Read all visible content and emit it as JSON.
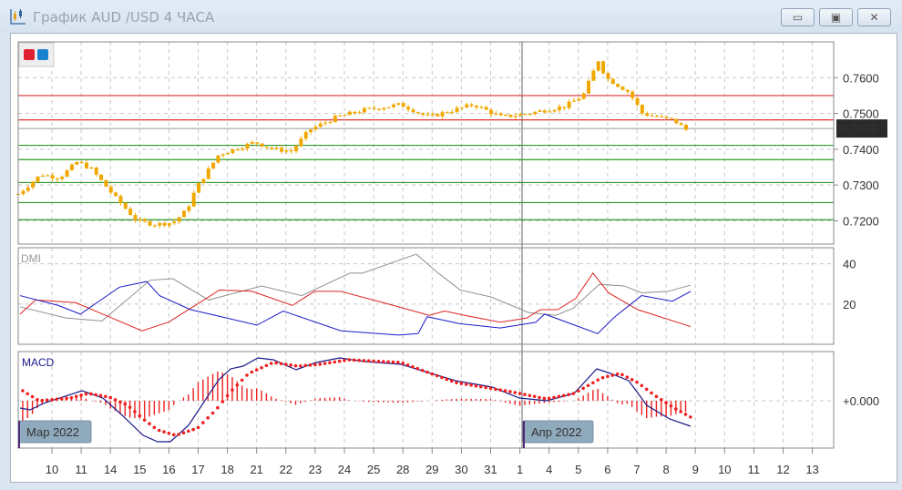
{
  "window": {
    "title": "График AUD /USD  4 ЧАСА",
    "buttons": [
      {
        "name": "minimize",
        "glyph": "▭"
      },
      {
        "name": "restore",
        "glyph": "▣"
      },
      {
        "name": "close",
        "glyph": "✕"
      }
    ]
  },
  "colors": {
    "candle": "#f0a800",
    "resistance": "#e03030",
    "support": "#2a9a2a",
    "adx": "#909090",
    "plus_di": "#e02020",
    "minus_di": "#1a1ac8",
    "macd": "#1a1a8a",
    "signal": "#ee2020",
    "histogram": "#ee2020",
    "current_price_bg": "#2a2a2a"
  },
  "legend_swatches": [
    "#e02030",
    "#1a80d0"
  ],
  "chart_data": [
    {
      "type": "candlestick",
      "title": "",
      "x_ticks": [
        "10",
        "11",
        "14",
        "15",
        "16",
        "17",
        "18",
        "21",
        "22",
        "23",
        "24",
        "25",
        "28",
        "29",
        "30",
        "31",
        "1",
        "4",
        "5",
        "6",
        "7",
        "8",
        "9",
        "10",
        "11",
        "12",
        "13"
      ],
      "month_labels": [
        {
          "label": "Мар 2022",
          "at_tick": -1.1
        },
        {
          "label": "Апр 2022",
          "at_tick": 16
        }
      ],
      "y_ticks": [
        "0.7200",
        "0.7300",
        "0.7400",
        "0.7500",
        "0.7600"
      ],
      "ylim": [
        0.7135,
        0.77
      ],
      "current_price": "0.7458",
      "resistance_levels": [
        0.755,
        0.7482
      ],
      "support_levels": [
        0.7411,
        0.7371,
        0.7307,
        0.7251,
        0.7203
      ],
      "grid": true,
      "close_path": [
        [
          -1.15,
          0.7275
        ],
        [
          -0.37,
          0.733
        ],
        [
          0.25,
          0.732
        ],
        [
          0.87,
          0.7365
        ],
        [
          1.34,
          0.7345
        ],
        [
          2.12,
          0.727
        ],
        [
          2.9,
          0.72
        ],
        [
          3.52,
          0.719
        ],
        [
          4.14,
          0.7195
        ],
        [
          4.61,
          0.723
        ],
        [
          4.92,
          0.729
        ],
        [
          5.7,
          0.7385
        ],
        [
          6.95,
          0.742
        ],
        [
          7.57,
          0.74
        ],
        [
          8.19,
          0.7395
        ],
        [
          8.82,
          0.7455
        ],
        [
          9.75,
          0.749
        ],
        [
          10.69,
          0.751
        ],
        [
          11.93,
          0.7525
        ],
        [
          12.87,
          0.749
        ],
        [
          14.42,
          0.7525
        ],
        [
          15.36,
          0.749
        ],
        [
          16.29,
          0.75
        ],
        [
          17.54,
          0.752
        ],
        [
          18.16,
          0.755
        ],
        [
          18.69,
          0.765
        ],
        [
          18.94,
          0.76
        ],
        [
          19.72,
          0.756
        ],
        [
          20.19,
          0.75
        ],
        [
          21.28,
          0.748
        ],
        [
          21.84,
          0.7445
        ]
      ]
    },
    {
      "type": "line",
      "title": "DMI",
      "y_ticks": [
        "20",
        "40"
      ],
      "ylim": [
        0,
        48
      ],
      "series": [
        {
          "key": "adx",
          "points": [
            [
              -1.09,
              18.6
            ],
            [
              0.5,
              13
            ],
            [
              1.71,
              11.6
            ],
            [
              3.36,
              31.9
            ],
            [
              4.14,
              32.6
            ],
            [
              5.36,
              22
            ],
            [
              7.17,
              29
            ],
            [
              8.54,
              24.2
            ],
            [
              10.19,
              35.4
            ],
            [
              10.62,
              35.4
            ],
            [
              12.46,
              44.8
            ],
            [
              13.21,
              35.4
            ],
            [
              13.96,
              27
            ],
            [
              15.02,
              23.5
            ],
            [
              16.29,
              15.8
            ],
            [
              17.23,
              14.4
            ],
            [
              17.82,
              17.9
            ],
            [
              18.72,
              29.8
            ],
            [
              19.56,
              29
            ],
            [
              20.16,
              25.6
            ],
            [
              21.06,
              26.3
            ],
            [
              21.84,
              29.4
            ]
          ]
        },
        {
          "key": "plus_di",
          "points": [
            [
              -1.09,
              15
            ],
            [
              -0.56,
              22
            ],
            [
              0.81,
              20.7
            ],
            [
              3.08,
              6.7
            ],
            [
              3.99,
              11
            ],
            [
              5.05,
              20.7
            ],
            [
              5.73,
              27
            ],
            [
              6.85,
              26.3
            ],
            [
              8.22,
              19.3
            ],
            [
              8.97,
              26.3
            ],
            [
              9.88,
              26.3
            ],
            [
              11.68,
              19.3
            ],
            [
              12.9,
              14.4
            ],
            [
              13.43,
              16.5
            ],
            [
              14.11,
              14.4
            ],
            [
              15.33,
              11
            ],
            [
              16.23,
              13
            ],
            [
              16.7,
              17.2
            ],
            [
              17.29,
              17.2
            ],
            [
              17.91,
              22.8
            ],
            [
              18.5,
              35.4
            ],
            [
              19.03,
              25.6
            ],
            [
              20.03,
              17.2
            ],
            [
              21.84,
              8.8
            ]
          ]
        },
        {
          "key": "minus_di",
          "points": [
            [
              -1.09,
              24.2
            ],
            [
              0.22,
              19.3
            ],
            [
              0.97,
              15
            ],
            [
              2.31,
              28.4
            ],
            [
              3.24,
              31.2
            ],
            [
              3.68,
              24.2
            ],
            [
              4.74,
              17.2
            ],
            [
              5.79,
              13.7
            ],
            [
              7.01,
              9.5
            ],
            [
              7.91,
              16.5
            ],
            [
              9.88,
              6.7
            ],
            [
              11.84,
              4.6
            ],
            [
              12.52,
              5.3
            ],
            [
              12.83,
              13.7
            ],
            [
              13.96,
              10.2
            ],
            [
              15.33,
              8.1
            ],
            [
              16.54,
              10.9
            ],
            [
              16.85,
              15
            ],
            [
              18.66,
              5.3
            ],
            [
              19.25,
              13.7
            ],
            [
              20.16,
              24.2
            ],
            [
              21.21,
              21.4
            ],
            [
              21.84,
              26.3
            ]
          ]
        }
      ]
    },
    {
      "type": "line",
      "title": "MACD",
      "y_ticks": [
        "+0.000"
      ],
      "ylim": [
        -0.0052,
        0.0054
      ],
      "series": [
        {
          "key": "macd",
          "points": [
            [
              -1.09,
              -0.0008
            ],
            [
              -0.75,
              -0.001
            ],
            [
              -0.22,
              -0.0002
            ],
            [
              1.03,
              0.0011
            ],
            [
              1.74,
              0.0003
            ],
            [
              2.37,
              -0.0015
            ],
            [
              3.12,
              -0.0038
            ],
            [
              3.61,
              -0.0045
            ],
            [
              4.05,
              -0.0045
            ],
            [
              4.67,
              -0.0027
            ],
            [
              5.7,
              0.0023
            ],
            [
              6.11,
              0.0035
            ],
            [
              6.54,
              0.0038
            ],
            [
              7.04,
              0.0047
            ],
            [
              7.57,
              0.0045
            ],
            [
              8.35,
              0.0034
            ],
            [
              9.03,
              0.0042
            ],
            [
              9.84,
              0.0047
            ],
            [
              10.69,
              0.0043
            ],
            [
              11.93,
              0.004
            ],
            [
              13.8,
              0.0022
            ],
            [
              15.05,
              0.0015
            ],
            [
              15.98,
              0.0003
            ],
            [
              16.92,
              0.0
            ],
            [
              17.85,
              0.0008
            ],
            [
              18.63,
              0.0035
            ],
            [
              19.1,
              0.003
            ],
            [
              19.72,
              0.0022
            ],
            [
              20.34,
              -0.0005
            ],
            [
              21.12,
              -0.002
            ],
            [
              21.84,
              -0.0028
            ]
          ]
        },
        {
          "key": "signal",
          "points": [
            [
              -1.0,
              0.0011
            ],
            [
              -0.44,
              0.0
            ],
            [
              0.62,
              0.0003
            ],
            [
              1.25,
              0.0008
            ],
            [
              1.96,
              0.0004
            ],
            [
              2.59,
              -0.0005
            ],
            [
              3.12,
              -0.002
            ],
            [
              3.61,
              -0.0032
            ],
            [
              4.24,
              -0.0038
            ],
            [
              4.98,
              -0.003
            ],
            [
              5.61,
              -0.001
            ],
            [
              6.11,
              0.001
            ],
            [
              6.73,
              0.003
            ],
            [
              7.57,
              0.0042
            ],
            [
              8.41,
              0.0038
            ],
            [
              9.13,
              0.004
            ],
            [
              10.16,
              0.0045
            ],
            [
              10.69,
              0.0044
            ],
            [
              11.93,
              0.0042
            ],
            [
              13.8,
              0.002
            ],
            [
              15.67,
              0.001
            ],
            [
              16.92,
              0.0002
            ],
            [
              17.85,
              0.0008
            ],
            [
              18.79,
              0.0025
            ],
            [
              19.41,
              0.003
            ],
            [
              20.03,
              0.002
            ],
            [
              20.65,
              0.0005
            ],
            [
              21.28,
              -0.0008
            ],
            [
              21.84,
              -0.0018
            ]
          ]
        }
      ]
    }
  ]
}
